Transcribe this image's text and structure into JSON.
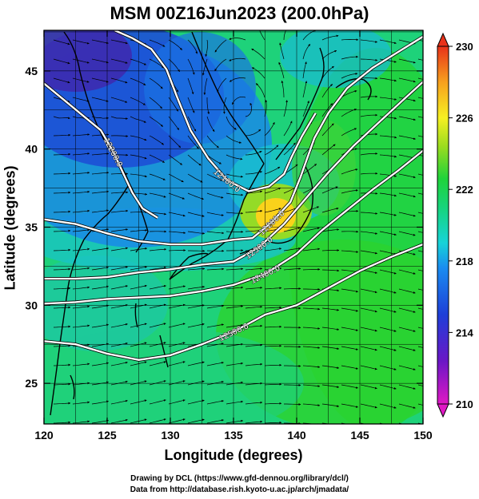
{
  "title": "MSM 00Z16Jun2023 (200.0hPa)",
  "x_axis": {
    "label": "Longitude (degrees)",
    "ticks": [
      "120",
      "125",
      "130",
      "135",
      "140",
      "145",
      "150"
    ],
    "range": [
      120,
      150
    ]
  },
  "y_axis": {
    "label": "Latitude  (degrees)",
    "ticks": [
      "25",
      "30",
      "35",
      "40",
      "45"
    ],
    "range": [
      22.4,
      47.6
    ]
  },
  "colorbar": {
    "range": [
      210,
      230
    ],
    "ticks": [
      "210",
      "214",
      "218",
      "222",
      "226",
      "230"
    ]
  },
  "contours": [
    {
      "label": "12200.0",
      "points": [
        [
          120,
          44.2
        ],
        [
          121.5,
          43.2
        ],
        [
          123,
          42.2
        ],
        [
          124.5,
          41.2
        ],
        [
          125.5,
          39.8
        ],
        [
          126.3,
          38.4
        ],
        [
          127,
          37.2
        ],
        [
          127.8,
          36.2
        ],
        [
          129,
          35.6
        ]
      ]
    },
    {
      "label": "12100.0",
      "points": [
        [
          125.6,
          47.6
        ],
        [
          127,
          47.1
        ],
        [
          128.5,
          46.4
        ],
        [
          129.7,
          45.1
        ],
        [
          130.5,
          43.4
        ],
        [
          131.6,
          41.2
        ],
        [
          133,
          39.4
        ],
        [
          134.5,
          38
        ],
        [
          136.2,
          37.3
        ],
        [
          137.8,
          37.6
        ],
        [
          139,
          38.4
        ],
        [
          139.6,
          39.5
        ],
        [
          140.4,
          40.8
        ],
        [
          141.5,
          42.3
        ]
      ]
    },
    {
      "label": "12200.0",
      "points": [
        [
          120,
          35.5
        ],
        [
          122.5,
          35.2
        ],
        [
          125,
          34.6
        ],
        [
          127.5,
          34.1
        ],
        [
          130,
          33.9
        ],
        [
          132.5,
          33.9
        ],
        [
          135,
          34.2
        ],
        [
          136.5,
          34.3
        ],
        [
          138,
          35.3
        ],
        [
          139.5,
          36.6
        ],
        [
          140.3,
          38.2
        ],
        [
          141.4,
          40.7
        ],
        [
          142.5,
          42.3
        ],
        [
          144,
          43.9
        ],
        [
          146,
          45.2
        ],
        [
          148,
          46.2
        ],
        [
          150,
          47.2
        ]
      ]
    },
    {
      "label": "12300.0",
      "points": [
        [
          120,
          31.7
        ],
        [
          122.5,
          31.7
        ],
        [
          125,
          31.8
        ],
        [
          127.5,
          32.1
        ],
        [
          130,
          32.3
        ],
        [
          132.5,
          32.6
        ],
        [
          135,
          32.8
        ],
        [
          137,
          33.7
        ],
        [
          139,
          35.2
        ],
        [
          141,
          37.1
        ],
        [
          142.5,
          38.5
        ],
        [
          144.5,
          40.2
        ],
        [
          146.5,
          41.7
        ],
        [
          148.5,
          43.2
        ],
        [
          150,
          44.3
        ]
      ]
    },
    {
      "label": "12400.0",
      "points": [
        [
          120,
          30.1
        ],
        [
          122.5,
          30.2
        ],
        [
          125,
          30.4
        ],
        [
          127.5,
          30.5
        ],
        [
          130,
          30.6
        ],
        [
          132.5,
          30.9
        ],
        [
          135,
          31.3
        ],
        [
          137.5,
          32
        ],
        [
          140,
          33.3
        ],
        [
          142,
          34.8
        ],
        [
          144,
          36.1
        ],
        [
          146,
          37.4
        ],
        [
          148,
          38.6
        ],
        [
          150,
          39.9
        ]
      ]
    },
    {
      "label": "12500.0",
      "points": [
        [
          120,
          27.7
        ],
        [
          122.5,
          27.5
        ],
        [
          125,
          26.9
        ],
        [
          127.5,
          26.5
        ],
        [
          130,
          26.8
        ],
        [
          132.5,
          27.5
        ],
        [
          135,
          28.3
        ],
        [
          137.5,
          29.4
        ],
        [
          140,
          30
        ],
        [
          142.5,
          31.1
        ],
        [
          145,
          32.2
        ],
        [
          147.5,
          33.1
        ],
        [
          150,
          33.9
        ]
      ]
    }
  ],
  "colors": {
    "cold_core": "#3d2bb0",
    "jet_max": "#ffd21a"
  }
}
